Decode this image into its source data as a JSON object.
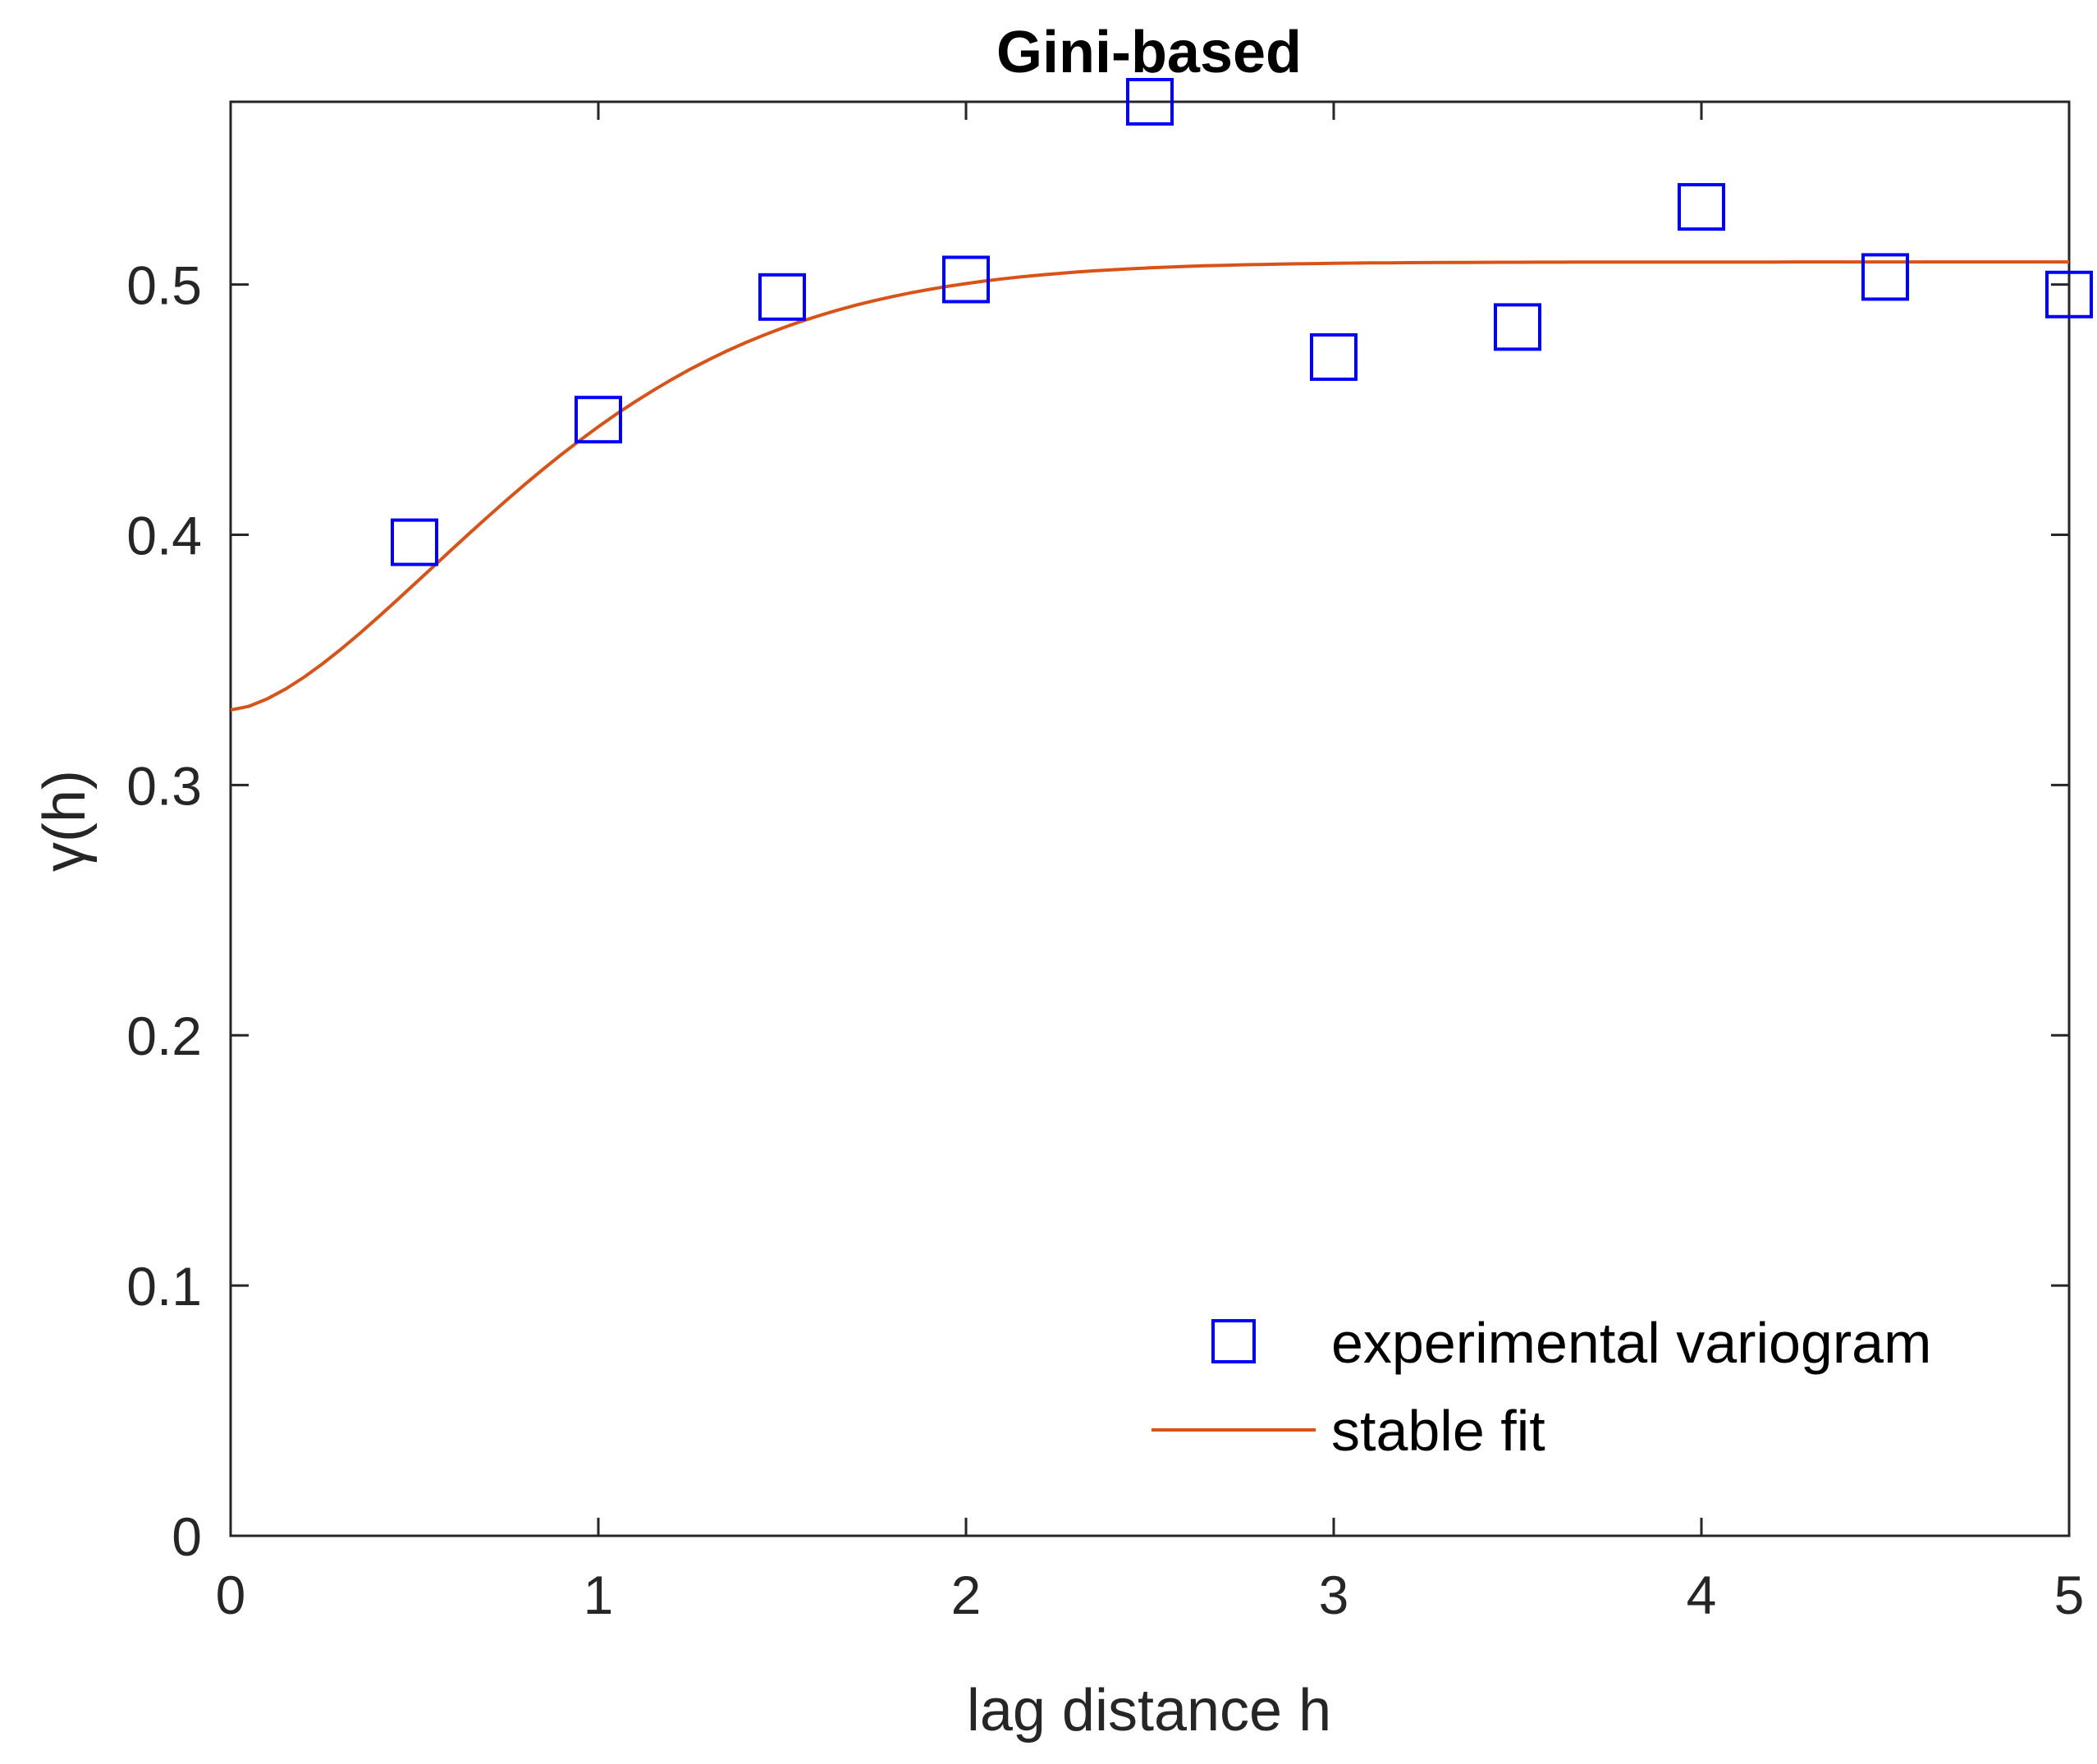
{
  "chart_data": {
    "type": "scatter",
    "title": "Gini-based",
    "xlabel": "lag distance h",
    "ylabel": "γ(h)",
    "xlim": [
      0,
      5
    ],
    "ylim": [
      0,
      0.573
    ],
    "xticks": [
      0,
      1,
      2,
      3,
      4,
      5
    ],
    "yticks": [
      0,
      0.1,
      0.2,
      0.3,
      0.4,
      0.5
    ],
    "xtick_labels": [
      "0",
      "1",
      "2",
      "3",
      "4",
      "5"
    ],
    "ytick_labels": [
      "0",
      "0.1",
      "0.2",
      "0.3",
      "0.4",
      "0.5"
    ],
    "grid": false,
    "legend_position": "bottom-right",
    "series": [
      {
        "name": "experimental variogram",
        "kind": "markers",
        "marker": "square",
        "color": "#0000ff",
        "x": [
          0.5,
          1.0,
          1.5,
          2.0,
          2.5,
          3.0,
          3.5,
          4.0,
          4.5,
          5.0
        ],
        "y": [
          0.397,
          0.446,
          0.495,
          0.502,
          0.573,
          0.471,
          0.483,
          0.531,
          0.503,
          0.496
        ]
      },
      {
        "name": "stable fit",
        "kind": "line",
        "color": "#d95319",
        "model": "stable",
        "nugget": 0.33,
        "sill": 0.509,
        "range": 1.0,
        "exponent": 1.6,
        "samples": 101
      }
    ]
  }
}
